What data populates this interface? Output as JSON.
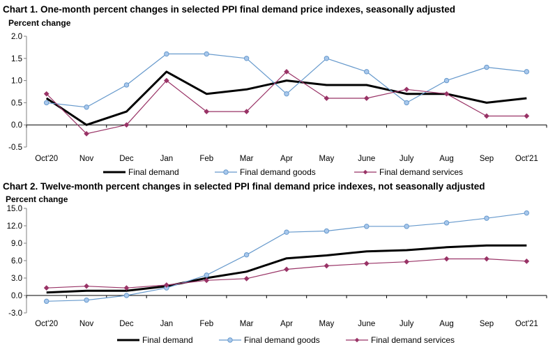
{
  "colors": {
    "final_demand": "#000000",
    "goods": "#6699cc",
    "services": "#993366",
    "axis": "#808080",
    "gridline": "#000000"
  },
  "chart_data": [
    {
      "type": "line",
      "title": "Chart 1. One-month percent changes in selected PPI final demand price indexes, seasonally adjusted",
      "ylabel": "Percent change",
      "xlabel": "",
      "categories": [
        "Oct'20",
        "Nov",
        "Dec",
        "Jan",
        "Feb",
        "Mar",
        "Apr",
        "May",
        "June",
        "July",
        "Aug",
        "Sep",
        "Oct'21"
      ],
      "yticks": [
        "2.0",
        "1.5",
        "1.0",
        "0.5",
        "0.0",
        "-0.5"
      ],
      "ylim": [
        -0.5,
        2.0
      ],
      "grid": false,
      "legend": "bottom",
      "series": [
        {
          "name": "Final demand",
          "values": [
            0.6,
            0.0,
            0.3,
            1.2,
            0.7,
            0.8,
            1.0,
            0.9,
            0.9,
            0.7,
            0.7,
            0.5,
            0.6
          ]
        },
        {
          "name": "Final demand goods",
          "values": [
            0.5,
            0.4,
            0.9,
            1.6,
            1.6,
            1.5,
            0.7,
            1.5,
            1.2,
            0.5,
            1.0,
            1.3,
            1.2
          ]
        },
        {
          "name": "Final demand services",
          "values": [
            0.7,
            -0.2,
            0.0,
            1.0,
            0.3,
            0.3,
            1.2,
            0.6,
            0.6,
            0.8,
            0.7,
            0.2,
            0.2
          ]
        }
      ]
    },
    {
      "type": "line",
      "title": "Chart 2. Twelve-month percent changes in selected PPI final demand price indexes, not seasonally adjusted",
      "ylabel": "Percent change",
      "xlabel": "",
      "categories": [
        "Oct'20",
        "Nov",
        "Dec",
        "Jan",
        "Feb",
        "Mar",
        "Apr",
        "May",
        "June",
        "July",
        "Aug",
        "Sep",
        "Oct'21"
      ],
      "yticks": [
        "15.0",
        "12.0",
        "9.0",
        "6.0",
        "3.0",
        "0.0",
        "-3.0"
      ],
      "ylim": [
        -3.0,
        15.0
      ],
      "grid": false,
      "legend": "bottom",
      "series": [
        {
          "name": "Final demand",
          "values": [
            0.5,
            0.8,
            0.8,
            1.6,
            3.0,
            4.1,
            6.4,
            6.9,
            7.6,
            7.8,
            8.3,
            8.6,
            8.6
          ]
        },
        {
          "name": "Final demand goods",
          "values": [
            -1.0,
            -0.8,
            0.0,
            1.3,
            3.5,
            7.0,
            10.9,
            11.1,
            11.9,
            11.9,
            12.5,
            13.3,
            14.2
          ]
        },
        {
          "name": "Final demand services",
          "values": [
            1.3,
            1.6,
            1.3,
            1.8,
            2.6,
            2.9,
            4.5,
            5.1,
            5.5,
            5.8,
            6.3,
            6.3,
            5.9
          ]
        }
      ]
    }
  ]
}
